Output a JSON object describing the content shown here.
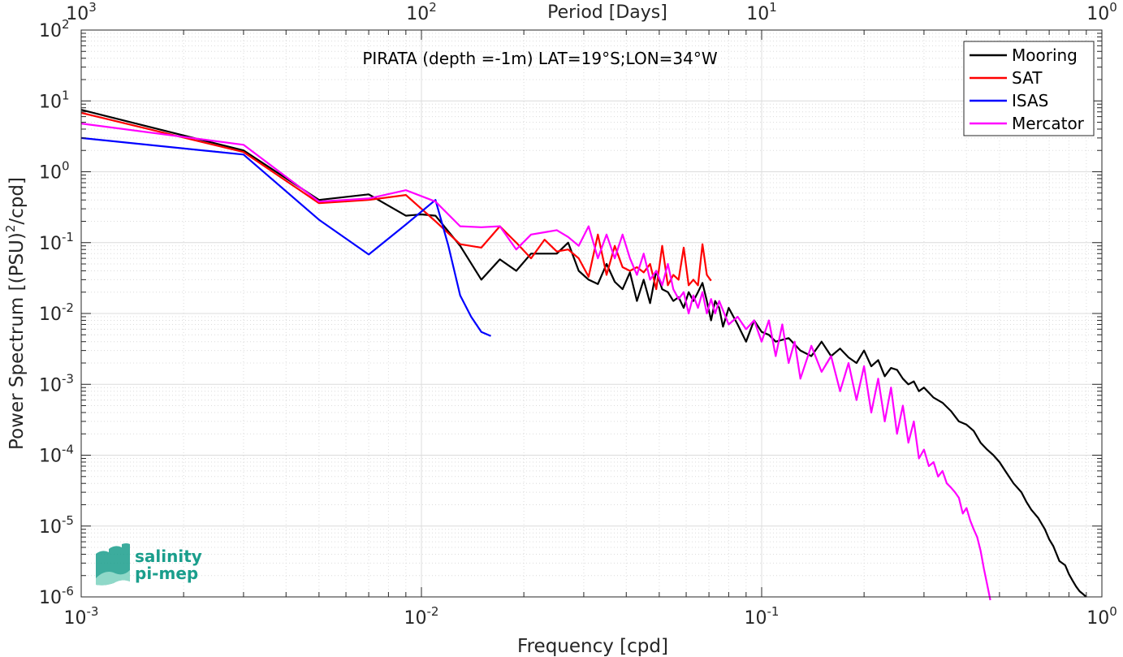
{
  "chart_data": {
    "type": "line",
    "title": "PIRATA (depth =-1m) LAT=19°S;LON=34°W",
    "xlabel": "Frequency [cpd]",
    "ylabel": "Power Spectrum [(PSU)²/cpd]",
    "ylabel_parts": {
      "before": "Power Spectrum [(PSU)",
      "sup": "2",
      "after": "/cpd]"
    },
    "top_xlabel": "Period [Days]",
    "x_scale": "log",
    "y_scale": "log",
    "xlim": [
      0.001,
      1
    ],
    "ylim": [
      1e-06,
      100
    ],
    "grid": true,
    "legend_position": "top-right",
    "x_ticks": [
      {
        "value": 0.001,
        "base": "10",
        "exp": "-3"
      },
      {
        "value": 0.01,
        "base": "10",
        "exp": "-2"
      },
      {
        "value": 0.1,
        "base": "10",
        "exp": "-1"
      },
      {
        "value": 1,
        "base": "10",
        "exp": "0"
      }
    ],
    "top_ticks": [
      {
        "value": 0.001,
        "base": "10",
        "exp": "3"
      },
      {
        "value": 0.01,
        "base": "10",
        "exp": "2"
      },
      {
        "value": 0.1,
        "base": "10",
        "exp": "1"
      },
      {
        "value": 1,
        "base": "10",
        "exp": "0"
      }
    ],
    "y_ticks": [
      {
        "value": 100,
        "base": "10",
        "exp": "2"
      },
      {
        "value": 10,
        "base": "10",
        "exp": "1"
      },
      {
        "value": 1,
        "base": "10",
        "exp": "0"
      },
      {
        "value": 0.1,
        "base": "10",
        "exp": "-1"
      },
      {
        "value": 0.01,
        "base": "10",
        "exp": "-2"
      },
      {
        "value": 0.001,
        "base": "10",
        "exp": "-3"
      },
      {
        "value": 0.0001,
        "base": "10",
        "exp": "-4"
      },
      {
        "value": 1e-05,
        "base": "10",
        "exp": "-5"
      },
      {
        "value": 1e-06,
        "base": "10",
        "exp": "-6"
      }
    ],
    "series": [
      {
        "name": "Mooring",
        "color": "#000000",
        "x": [
          0.001,
          0.003,
          0.005,
          0.007,
          0.009,
          0.01,
          0.011,
          0.013,
          0.015,
          0.017,
          0.019,
          0.021,
          0.023,
          0.025,
          0.027,
          0.029,
          0.031,
          0.033,
          0.035,
          0.037,
          0.039,
          0.041,
          0.043,
          0.045,
          0.047,
          0.049,
          0.051,
          0.053,
          0.055,
          0.057,
          0.059,
          0.061,
          0.063,
          0.065,
          0.067,
          0.069,
          0.071,
          0.073,
          0.075,
          0.077,
          0.08,
          0.085,
          0.09,
          0.095,
          0.1,
          0.105,
          0.11,
          0.12,
          0.13,
          0.14,
          0.15,
          0.16,
          0.17,
          0.18,
          0.19,
          0.2,
          0.21,
          0.22,
          0.23,
          0.24,
          0.25,
          0.26,
          0.27,
          0.28,
          0.29,
          0.3,
          0.32,
          0.34,
          0.36,
          0.38,
          0.4,
          0.42,
          0.44,
          0.46,
          0.48,
          0.5,
          0.52,
          0.55,
          0.58,
          0.6,
          0.62,
          0.65,
          0.68,
          0.7,
          0.72,
          0.75,
          0.78,
          0.8,
          0.82,
          0.84,
          0.86,
          0.88,
          0.9
        ],
        "y": [
          7.5,
          2.0,
          0.4,
          0.48,
          0.24,
          0.25,
          0.24,
          0.09,
          0.03,
          0.058,
          0.04,
          0.07,
          0.07,
          0.07,
          0.1,
          0.04,
          0.03,
          0.026,
          0.05,
          0.028,
          0.022,
          0.038,
          0.015,
          0.03,
          0.014,
          0.04,
          0.022,
          0.02,
          0.015,
          0.017,
          0.012,
          0.02,
          0.015,
          0.02,
          0.027,
          0.015,
          0.008,
          0.015,
          0.012,
          0.0065,
          0.012,
          0.007,
          0.004,
          0.008,
          0.0055,
          0.005,
          0.004,
          0.0045,
          0.003,
          0.0025,
          0.004,
          0.0025,
          0.0032,
          0.0024,
          0.002,
          0.003,
          0.0018,
          0.0022,
          0.0013,
          0.0017,
          0.0016,
          0.0012,
          0.001,
          0.0011,
          0.0008,
          0.0009,
          0.00065,
          0.00055,
          0.00042,
          0.0003,
          0.00027,
          0.00022,
          0.00015,
          0.00012,
          0.0001,
          8e-05,
          6e-05,
          4e-05,
          3e-05,
          2.2e-05,
          1.7e-05,
          1.3e-05,
          9e-06,
          6.5e-06,
          5.2e-06,
          3.2e-06,
          2.8e-06,
          2.1e-06,
          1.7e-06,
          1.4e-06,
          1.2e-06,
          1.1e-06,
          1e-06
        ]
      },
      {
        "name": "SAT",
        "color": "#ff0000",
        "x": [
          0.001,
          0.003,
          0.005,
          0.007,
          0.009,
          0.011,
          0.013,
          0.015,
          0.017,
          0.019,
          0.021,
          0.023,
          0.025,
          0.027,
          0.029,
          0.031,
          0.033,
          0.035,
          0.037,
          0.039,
          0.041,
          0.043,
          0.045,
          0.047,
          0.049,
          0.051,
          0.053,
          0.055,
          0.057,
          0.059,
          0.061,
          0.063,
          0.065,
          0.067,
          0.069,
          0.071
        ],
        "y": [
          6.8,
          1.9,
          0.36,
          0.4,
          0.47,
          0.2,
          0.095,
          0.085,
          0.17,
          0.1,
          0.06,
          0.11,
          0.075,
          0.08,
          0.06,
          0.033,
          0.13,
          0.035,
          0.09,
          0.045,
          0.04,
          0.045,
          0.038,
          0.05,
          0.022,
          0.09,
          0.025,
          0.035,
          0.03,
          0.085,
          0.025,
          0.03,
          0.025,
          0.095,
          0.035,
          0.029
        ]
      },
      {
        "name": "ISAS",
        "color": "#0000ff",
        "x": [
          0.001,
          0.003,
          0.005,
          0.007,
          0.009,
          0.011,
          0.012,
          0.013,
          0.014,
          0.015,
          0.016
        ],
        "y": [
          3.0,
          1.75,
          0.21,
          0.068,
          0.18,
          0.4,
          0.09,
          0.018,
          0.009,
          0.0055,
          0.0048
        ]
      },
      {
        "name": "Mercator",
        "color": "#ff00ff",
        "x": [
          0.001,
          0.003,
          0.005,
          0.007,
          0.009,
          0.011,
          0.013,
          0.015,
          0.017,
          0.019,
          0.021,
          0.023,
          0.025,
          0.027,
          0.029,
          0.031,
          0.033,
          0.035,
          0.037,
          0.039,
          0.041,
          0.043,
          0.045,
          0.047,
          0.049,
          0.051,
          0.053,
          0.055,
          0.057,
          0.059,
          0.061,
          0.063,
          0.065,
          0.067,
          0.069,
          0.071,
          0.073,
          0.075,
          0.08,
          0.085,
          0.09,
          0.095,
          0.1,
          0.105,
          0.11,
          0.115,
          0.12,
          0.125,
          0.13,
          0.14,
          0.15,
          0.16,
          0.17,
          0.18,
          0.19,
          0.2,
          0.21,
          0.22,
          0.23,
          0.24,
          0.25,
          0.26,
          0.27,
          0.28,
          0.29,
          0.3,
          0.31,
          0.32,
          0.33,
          0.34,
          0.35,
          0.36,
          0.37,
          0.38,
          0.39,
          0.4,
          0.41,
          0.42,
          0.43,
          0.44,
          0.45,
          0.46,
          0.47
        ],
        "y": [
          4.8,
          2.4,
          0.38,
          0.42,
          0.55,
          0.38,
          0.17,
          0.165,
          0.17,
          0.08,
          0.13,
          0.14,
          0.15,
          0.12,
          0.09,
          0.17,
          0.06,
          0.13,
          0.06,
          0.13,
          0.06,
          0.035,
          0.07,
          0.03,
          0.04,
          0.025,
          0.05,
          0.022,
          0.016,
          0.02,
          0.01,
          0.018,
          0.012,
          0.02,
          0.01,
          0.016,
          0.01,
          0.015,
          0.007,
          0.009,
          0.006,
          0.008,
          0.004,
          0.008,
          0.0025,
          0.007,
          0.002,
          0.004,
          0.0012,
          0.0035,
          0.0015,
          0.0025,
          0.0008,
          0.002,
          0.0006,
          0.0018,
          0.0004,
          0.0012,
          0.0003,
          0.0009,
          0.0002,
          0.0005,
          0.00015,
          0.0003,
          9e-05,
          0.00012,
          7e-05,
          8e-05,
          5e-05,
          6e-05,
          4e-05,
          3.5e-05,
          3e-05,
          2.5e-05,
          1.5e-05,
          1.8e-05,
          1.2e-05,
          9e-06,
          7e-06,
          4.5e-06,
          2.5e-06,
          1.5e-06,
          9e-07
        ]
      }
    ],
    "logo": {
      "line1": "salinity",
      "line2": "pi-mep",
      "color": "#1a9e8c"
    }
  }
}
